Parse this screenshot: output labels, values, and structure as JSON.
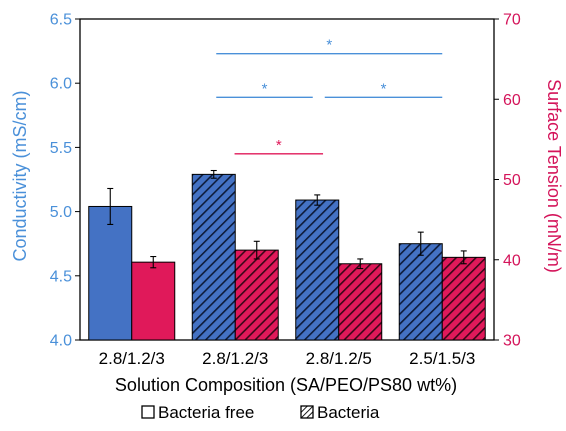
{
  "chart_data": {
    "type": "bar",
    "categories": [
      "2.8/1.2/3",
      "2.8/1.2/3",
      "2.8/1.2/5",
      "2.5/1.5/3"
    ],
    "xlabel": "Solution Composition (SA/PEO/PS80 wt%)",
    "ylabel_left": "Conductivity (mS/cm)",
    "ylabel_right": "Surface Tension (mN/m)",
    "ylim_left": [
      4.0,
      6.5
    ],
    "ylim_right": [
      30,
      70
    ],
    "yticks_left": [
      "4.0",
      "4.5",
      "5.0",
      "5.5",
      "6.0",
      "6.5"
    ],
    "yticks_right": [
      "30",
      "40",
      "50",
      "60",
      "70"
    ],
    "grid": false,
    "legend_position": "bottom",
    "legend": [
      {
        "label": "Bacteria free",
        "pattern": "solid"
      },
      {
        "label": "Bacteria",
        "pattern": "hatched"
      }
    ],
    "series": [
      {
        "axis": "left",
        "color": "#4472c4",
        "values": [
          5.04,
          5.29,
          5.09,
          4.75
        ],
        "errors": [
          0.14,
          0.03,
          0.04,
          0.09
        ],
        "hatched": [
          false,
          true,
          true,
          true
        ]
      },
      {
        "axis": "right",
        "color": "#e0195a",
        "values": [
          39.7,
          41.2,
          39.5,
          40.3
        ],
        "errors": [
          0.7,
          1.1,
          0.6,
          0.8
        ],
        "hatched": [
          false,
          true,
          true,
          true
        ]
      }
    ],
    "significance": [
      {
        "label": "*",
        "from": 1,
        "to": 3,
        "color": "#4a90d9",
        "y_axis": "left",
        "y": 6.23
      },
      {
        "label": "*",
        "from": 1,
        "to": 2,
        "color": "#4a90d9",
        "y_axis": "left",
        "y": 5.89
      },
      {
        "label": "*",
        "from": 2,
        "to": 3,
        "color": "#4a90d9",
        "y_axis": "left",
        "y": 5.89
      },
      {
        "label": "*",
        "from": 1.3,
        "to": 2.0,
        "color": "#e0195a",
        "y_axis": "left",
        "y": 5.45
      }
    ],
    "colors": {
      "left_axis": "#4a90d9",
      "right_axis": "#d4145a",
      "bar_blue": "#4472c4",
      "bar_red": "#e0195a"
    }
  }
}
